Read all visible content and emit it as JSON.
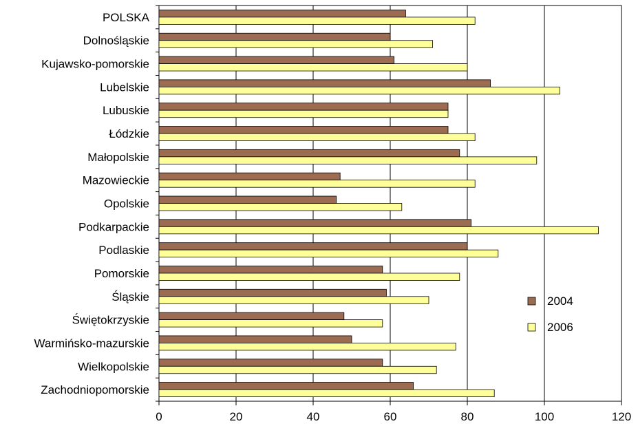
{
  "chart_data": {
    "type": "bar",
    "orientation": "horizontal",
    "title": "",
    "xlabel": "",
    "ylabel": "",
    "categories": [
      "POLSKA",
      "Dolnośląskie",
      "Kujawsko-pomorskie",
      "Lubelskie",
      "Lubuskie",
      "Łódzkie",
      "Małopolskie",
      "Mazowieckie",
      "Opolskie",
      "Podkarpackie",
      "Podlaskie",
      "Pomorskie",
      "Śląskie",
      "Świętokrzyskie",
      "Warmińsko-mazurskie",
      "Wielkopolskie",
      "Zachodniopomorskie"
    ],
    "series": [
      {
        "name": "2004",
        "color": "#9b6b52",
        "values": [
          64,
          60,
          61,
          86,
          75,
          75,
          78,
          47,
          46,
          81,
          80,
          58,
          59,
          48,
          50,
          58,
          66
        ]
      },
      {
        "name": "2006",
        "color": "#ffff99",
        "values": [
          82,
          71,
          80,
          104,
          75,
          82,
          98,
          82,
          63,
          114,
          88,
          78,
          70,
          58,
          77,
          72,
          87
        ]
      }
    ],
    "xlim": [
      0,
      120
    ],
    "xticks": [
      0,
      20,
      40,
      60,
      80,
      100,
      120
    ],
    "grid": true,
    "legend_position": "right"
  }
}
